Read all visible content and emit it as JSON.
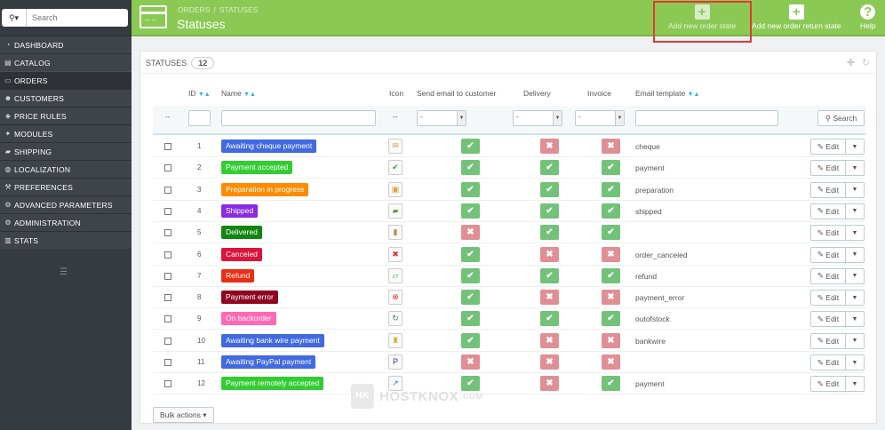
{
  "sidebar": {
    "search_placeholder": "Search",
    "search_icon": "magnifier-icon",
    "items": [
      {
        "label": "DASHBOARD",
        "icon": "gauge-icon",
        "glyph": "◔",
        "active": false
      },
      {
        "label": "CATALOG",
        "icon": "book-icon",
        "glyph": "▤",
        "active": false
      },
      {
        "label": "ORDERS",
        "icon": "credit-card-icon",
        "glyph": "▭",
        "active": true
      },
      {
        "label": "CUSTOMERS",
        "icon": "users-icon",
        "glyph": "☻",
        "active": false
      },
      {
        "label": "PRICE RULES",
        "icon": "tag-icon",
        "glyph": "◈",
        "active": false
      },
      {
        "label": "MODULES",
        "icon": "puzzle-icon",
        "glyph": "✦",
        "active": false
      },
      {
        "label": "SHIPPING",
        "icon": "truck-icon",
        "glyph": "▰",
        "active": false
      },
      {
        "label": "LOCALIZATION",
        "icon": "globe-icon",
        "glyph": "◍",
        "active": false
      },
      {
        "label": "PREFERENCES",
        "icon": "wrench-icon",
        "glyph": "⚒",
        "active": false
      },
      {
        "label": "ADVANCED PARAMETERS",
        "icon": "cogs-icon",
        "glyph": "⚙",
        "active": false
      },
      {
        "label": "ADMINISTRATION",
        "icon": "cog-icon",
        "glyph": "⚙",
        "active": false
      },
      {
        "label": "STATS",
        "icon": "bar-chart-icon",
        "glyph": "▥",
        "active": false
      }
    ]
  },
  "header": {
    "breadcrumb": [
      "ORDERS",
      "STATUSES"
    ],
    "breadcrumb_separator": "/",
    "title": "Statuses",
    "toolbar": [
      {
        "label": "Add new order state",
        "icon": "plus-icon",
        "glyph": "+",
        "highlighted": true
      },
      {
        "label": "Add new order return state",
        "icon": "plus-icon",
        "glyph": "+",
        "highlighted": false
      },
      {
        "label": "Help",
        "icon": "help-icon",
        "glyph": "?",
        "highlighted": false
      }
    ]
  },
  "panel": {
    "title": "STATUSES",
    "count": "12",
    "columns": {
      "id": "ID",
      "name": "Name",
      "icon": "Icon",
      "send_email": "Send email to customer",
      "delivery": "Delivery",
      "invoice": "Invoice",
      "email_template": "Email template"
    },
    "filter": {
      "dash": "--",
      "select_value": "-",
      "search_label": "Search"
    },
    "rows": [
      {
        "id": "1",
        "name": "Awaiting cheque payment",
        "color": "#4169e1",
        "icon": "cheque-icon",
        "glyph": "✉",
        "glyph_color": "#c9a54a",
        "send_email": true,
        "delivery": false,
        "invoice": false,
        "template": "cheque"
      },
      {
        "id": "2",
        "name": "Payment accepted",
        "color": "#32cd32",
        "icon": "check-icon",
        "glyph": "✔",
        "glyph_color": "#3a9a3a",
        "send_email": true,
        "delivery": true,
        "invoice": true,
        "template": "payment"
      },
      {
        "id": "3",
        "name": "Preparation in progress",
        "color": "#ff8c00",
        "icon": "box-icon",
        "glyph": "▣",
        "glyph_color": "#e0a030",
        "send_email": true,
        "delivery": true,
        "invoice": true,
        "template": "preparation"
      },
      {
        "id": "4",
        "name": "Shipped",
        "color": "#8a2be2",
        "icon": "truck-icon",
        "glyph": "▰",
        "glyph_color": "#6a9a4a",
        "send_email": true,
        "delivery": true,
        "invoice": true,
        "template": "shipped"
      },
      {
        "id": "5",
        "name": "Delivered",
        "color": "#108510",
        "icon": "package-icon",
        "glyph": "▮",
        "glyph_color": "#c08a4a",
        "send_email": false,
        "delivery": true,
        "invoice": true,
        "template": ""
      },
      {
        "id": "6",
        "name": "Canceled",
        "color": "#dc143c",
        "icon": "cross-icon",
        "glyph": "✖",
        "glyph_color": "#d33",
        "send_email": true,
        "delivery": false,
        "invoice": false,
        "template": "order_canceled"
      },
      {
        "id": "7",
        "name": "Refund",
        "color": "#ec2e15",
        "icon": "money-icon",
        "glyph": "▱",
        "glyph_color": "#4a9a4a",
        "send_email": true,
        "delivery": true,
        "invoice": true,
        "template": "refund"
      },
      {
        "id": "8",
        "name": "Payment error",
        "color": "#8f0621",
        "icon": "error-icon",
        "glyph": "⊗",
        "glyph_color": "#d33",
        "send_email": true,
        "delivery": false,
        "invoice": false,
        "template": "payment_error"
      },
      {
        "id": "9",
        "name": "On backorder",
        "color": "#ff69b4",
        "icon": "refresh-icon",
        "glyph": "↻",
        "glyph_color": "#3a8a5a",
        "send_email": true,
        "delivery": true,
        "invoice": true,
        "template": "outofstock"
      },
      {
        "id": "10",
        "name": "Awaiting bank wire payment",
        "color": "#4169e1",
        "icon": "bank-icon",
        "glyph": "♜",
        "glyph_color": "#d4a520",
        "send_email": true,
        "delivery": false,
        "invoice": false,
        "template": "bankwire"
      },
      {
        "id": "11",
        "name": "Awaiting PayPal payment",
        "color": "#4169e1",
        "icon": "paypal-icon",
        "glyph": "P",
        "glyph_color": "#1a3a8a",
        "send_email": false,
        "delivery": false,
        "invoice": false,
        "template": ""
      },
      {
        "id": "12",
        "name": "Payment remotely accepted",
        "color": "#32cd32",
        "icon": "remote-icon",
        "glyph": "↗",
        "glyph_color": "#3a6ad0",
        "send_email": true,
        "delivery": false,
        "invoice": true,
        "template": "payment"
      }
    ],
    "edit_label": "Edit",
    "bulk_actions_label": "Bulk actions"
  },
  "watermark": {
    "text": "HOSTKNOX",
    "domain": ".COM"
  },
  "colors": {
    "header_green": "#8bc954",
    "sidebar": "#363a41",
    "yes": "#72c279",
    "no": "#e08f95",
    "highlight": "#e53935"
  }
}
